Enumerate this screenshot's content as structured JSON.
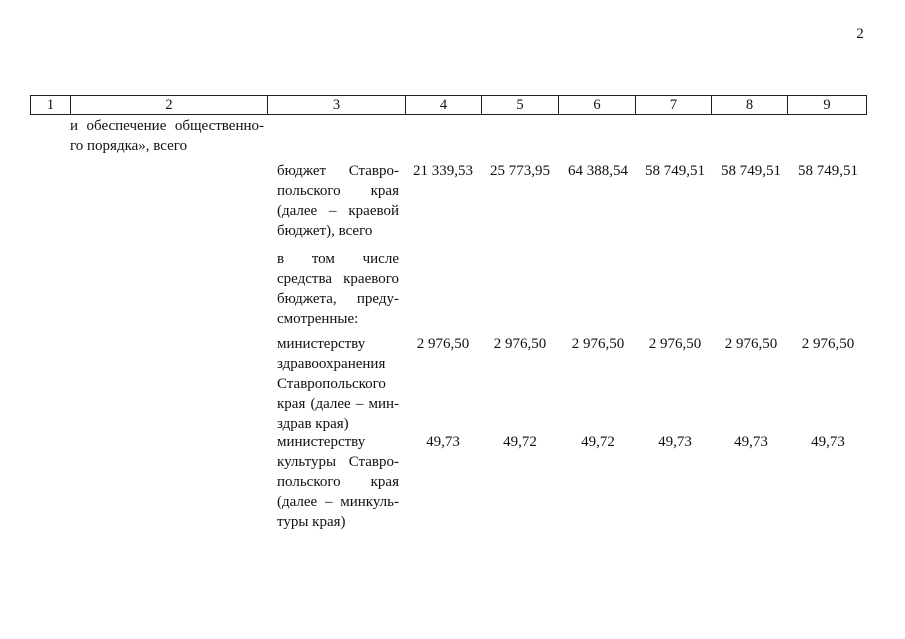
{
  "page": {
    "number": "2"
  },
  "table_header": {
    "columns": [
      "1",
      "2",
      "3",
      "4",
      "5",
      "6",
      "7",
      "8",
      "9"
    ]
  },
  "body": {
    "col2_paragraph": {
      "lines": [
        "и обеспечение общественно-",
        "го порядка», всего"
      ]
    },
    "rows": [
      {
        "label_lines": [
          "бюджет Ставро-",
          "польского края",
          "(далее – краевой",
          "бюджет), всего"
        ],
        "values": [
          "21 339,53",
          "25 773,95",
          "64 388,54",
          "58 749,51",
          "58 749,51",
          "58 749,51"
        ]
      },
      {
        "label_lines": [
          "в том числе",
          "средства краевого",
          "бюджета, преду-",
          "смотренные:"
        ],
        "values": []
      },
      {
        "label_lines": [
          "министерству",
          "здравоохранения",
          "Ставропольского",
          "края (далее – мин-",
          "здрав края)"
        ],
        "values": [
          "2 976,50",
          "2 976,50",
          "2 976,50",
          "2 976,50",
          "2 976,50",
          "2 976,50"
        ]
      },
      {
        "label_lines": [
          "министерству",
          "культуры Ставро-",
          "польского края",
          "(далее – минкуль-",
          "туры края)"
        ],
        "values": [
          "49,73",
          "49,72",
          "49,72",
          "49,73",
          "49,73",
          "49,73"
        ]
      }
    ]
  }
}
